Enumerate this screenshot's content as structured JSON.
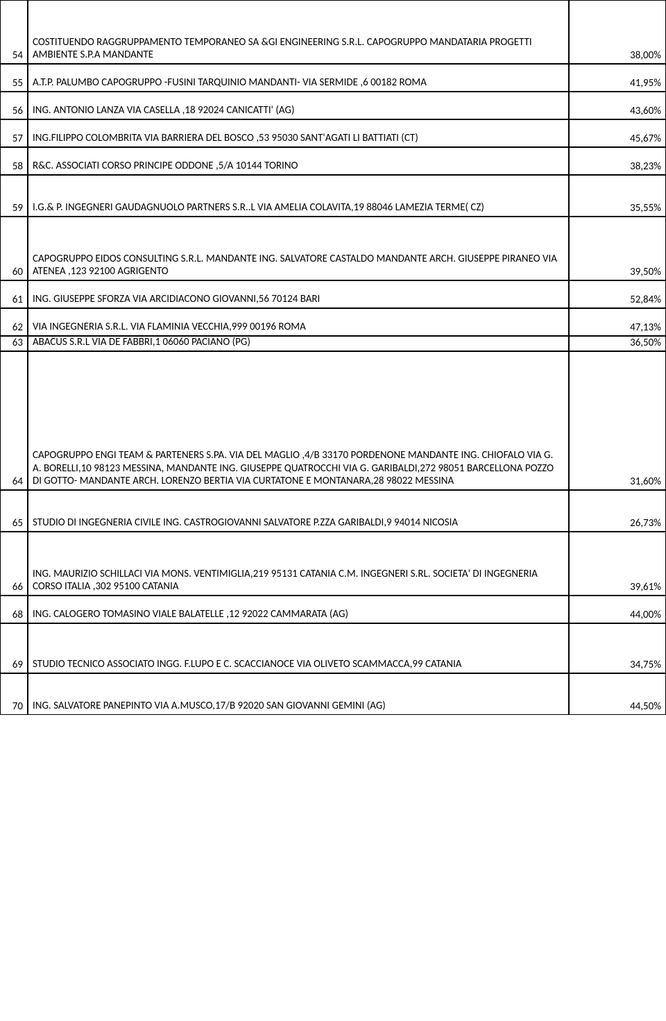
{
  "rows": [
    {
      "num": "54",
      "desc": "COSTITUENDO RAGGRUPPAMENTO TEMPORANEO SA &GI  ENGINEERING S.R.L. CAPOGRUPPO MANDATARIA PROGETTI AMBIENTE S.P.A MANDANTE",
      "pct": "38,00%",
      "h": "spacer-tall"
    },
    {
      "num": "55",
      "desc": "A.T.P. PALUMBO CAPOGRUPPO -FUSINI TARQUINIO MANDANTI- VIA SERMIDE ,6 00182 ROMA",
      "pct": "41,95%",
      "h": "spacer-short"
    },
    {
      "num": "56",
      "desc": "ING. ANTONIO LANZA VIA CASELLA ,18 92024 CANICATTI' (AG)",
      "pct": "43,60%",
      "h": "spacer-short"
    },
    {
      "num": "57",
      "desc": "ING.FILIPPO COLOMBRITA VIA BARRIERA DEL BOSCO ,53 95030 SANT'AGATI LI BATTIATI (CT)",
      "pct": "45,67%",
      "h": "spacer-short"
    },
    {
      "num": "58",
      "desc": "R&C. ASSOCIATI CORSO PRINCIPE ODDONE ,5/A 10144 TORINO",
      "pct": "38,23%",
      "h": "spacer-short"
    },
    {
      "num": "59",
      "desc": "I.G.& P. INGEGNERI GAUDAGNUOLO PARTNERS S.R..L VIA AMELIA COLAVITA,19 88046 LAMEZIA TERME( CZ)",
      "pct": "35,55%",
      "h": "spacer-med"
    },
    {
      "num": "60",
      "desc": "CAPOGRUPPO EIDOS CONSULTING S.R.L. MANDANTE ING. SALVATORE CASTALDO MANDANTE ARCH. GIUSEPPE PIRANEO VIA ATENEA ,123 92100 AGRIGENTO",
      "pct": "39,50%",
      "h": "spacer-tall"
    },
    {
      "num": "61",
      "desc": "ING. GIUSEPPE SFORZA VIA ARCIDIACONO GIOVANNI,56 70124 BARI",
      "pct": "52,84%",
      "h": "spacer-short"
    },
    {
      "num": "62",
      "desc": "VIA INGEGNERIA S.R.L. VIA FLAMINIA VECCHIA,999 00196 ROMA",
      "pct": "47,13%",
      "h": "spacer-short"
    },
    {
      "num": "63",
      "desc": "ABACUS S.R.L VIA DE FABBRI,1 06060 PACIANO (PG)",
      "pct": "36,50%",
      "h": "spacer-xs"
    },
    {
      "num": "64",
      "desc": "CAPOGRUPPO ENGI TEAM & PARTENERS S.PA. VIA DEL MAGLIO ,4/B 33170 PORDENONE MANDANTE ING. CHIOFALO VIA G. A. BORELLI,10 98123 MESSINA, MANDANTE ING. GIUSEPPE QUATROCCHI VIA G. GARIBALDI,272 98051 BARCELLONA POZZO DI GOTTO- MANDANTE ARCH. LORENZO BERTIA  VIA CURTATONE E MONTANARA,28 98022 MESSINA",
      "pct": "31,60%",
      "h": "spacer-big"
    },
    {
      "num": "65",
      "desc": "STUDIO DI INGEGNERIA  CIVILE ING. CASTROGIOVANNI SALVATORE  P.ZZA GARIBALDI,9 94014 NICOSIA",
      "pct": "26,73%",
      "h": "spacer-med"
    },
    {
      "num": "66",
      "desc": "ING. MAURIZIO SCHILLACI  VIA MONS. VENTIMIGLIA,219 95131 CATANIA  C.M. INGEGNERI S.RL. SOCIETA' DI INGEGNERIA CORSO ITALIA ,302 95100 CATANIA",
      "pct": "39,61%",
      "h": "spacer-tall"
    },
    {
      "num": "68",
      "desc": "ING. CALOGERO TOMASINO VIALE BALATELLE ,12 92022 CAMMARATA (AG)",
      "pct": "44,00%",
      "h": "spacer-short"
    },
    {
      "num": "69",
      "desc": "STUDIO TECNICO ASSOCIATO INGG. F.LUPO E C. SCACCIANOCE VIA OLIVETO SCAMMACCA,99 CATANIA",
      "pct": "34,75%",
      "h": "spacer-med2"
    },
    {
      "num": "70",
      "desc": "ING. SALVATORE PANEPINTO VIA A.MUSCO,17/B 92020 SAN GIOVANNI GEMINI (AG)",
      "pct": "44,50%",
      "h": "spacer-med"
    }
  ]
}
